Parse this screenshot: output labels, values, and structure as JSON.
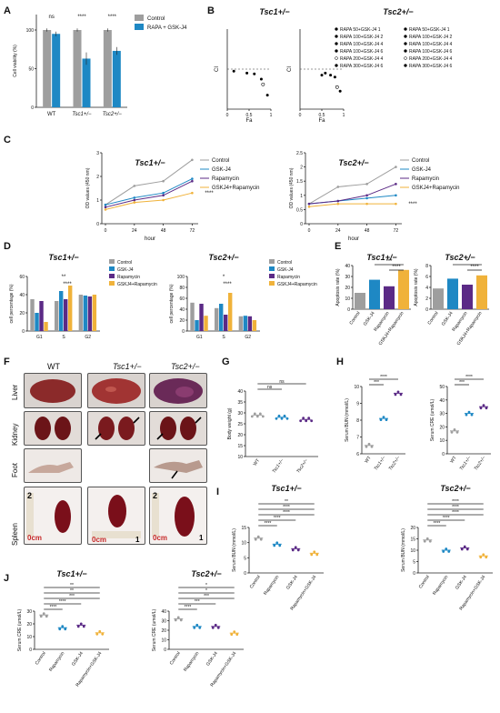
{
  "panels": {
    "A": "A",
    "B": "B",
    "C": "C",
    "D": "D",
    "E": "E",
    "F": "F",
    "G": "G",
    "H": "H",
    "I": "I",
    "J": "J"
  },
  "labels": {
    "tsc1": "Tsc1+/−",
    "tsc2": "Tsc2+/−",
    "wt": "WT",
    "liver": "Liver",
    "kidney": "Kidney",
    "foot": "Foot",
    "spleen": "Spleen",
    "hour": "hour",
    "fa": "Fa",
    "ci": "CI"
  },
  "colors": {
    "control": "#9e9e9e",
    "gsk": "#1e88c4",
    "rapa": "#5b2a86",
    "combo": "#f0b23a"
  },
  "chart_data": [
    {
      "panel": "A",
      "type": "bar",
      "categories": [
        "WT",
        "Tsc1+/−",
        "Tsc2+/−"
      ],
      "series": [
        {
          "name": "Control",
          "values": [
            100,
            100,
            100
          ]
        },
        {
          "name": "RAPA + GSK-J4",
          "values": [
            95,
            63,
            73
          ]
        }
      ],
      "errors": [
        [
          2,
          2,
          2
        ],
        [
          3,
          8,
          5
        ]
      ],
      "ylabel": "Cell viability (%)",
      "ylim": [
        0,
        120
      ],
      "yticks": [
        0,
        50,
        100
      ],
      "significance": [
        "ns",
        "****",
        "****"
      ]
    },
    {
      "panel": "B-Tsc1",
      "type": "scatter",
      "title": "Tsc1+/−",
      "xlabel": "Fa",
      "ylabel": "CI",
      "xlim": [
        0,
        1
      ],
      "ylim": [
        0,
        2
      ],
      "series": [
        {
          "name": "RAPA 50+GSK-J4 1",
          "x": 0.15,
          "y": 0.95
        },
        {
          "name": "RAPA 100+GSK-J4 2",
          "x": 0.45,
          "y": 0.9
        },
        {
          "name": "RAPA 100+GSK-J4 4",
          "x": 0.62,
          "y": 0.88
        },
        {
          "name": "RAPA 100+GSK-J4 6",
          "x": 0.78,
          "y": 0.75
        },
        {
          "name": "RAPA 200+GSK-J4 4",
          "x": 0.82,
          "y": 0.62
        },
        {
          "name": "RAPA 300+GSK-J4 6",
          "x": 0.92,
          "y": 0.35
        }
      ]
    },
    {
      "panel": "B-Tsc2",
      "type": "scatter",
      "title": "Tsc2+/−",
      "xlabel": "Fa",
      "ylabel": "CI",
      "xlim": [
        0,
        1
      ],
      "ylim": [
        0,
        2
      ],
      "series": [
        {
          "name": "RAPA 50+GSK-J4 1",
          "x": 0.5,
          "y": 0.85
        },
        {
          "name": "RAPA 100+GSK-J4 2",
          "x": 0.58,
          "y": 0.9
        },
        {
          "name": "RAPA 100+GSK-J4 4",
          "x": 0.7,
          "y": 0.85
        },
        {
          "name": "RAPA 100+GSK-J4 6",
          "x": 0.8,
          "y": 0.8
        },
        {
          "name": "RAPA 200+GSK-J4 4",
          "x": 0.85,
          "y": 0.55
        },
        {
          "name": "RAPA 300+GSK-J4 6",
          "x": 0.92,
          "y": 0.45
        }
      ]
    },
    {
      "panel": "C-Tsc1",
      "type": "line",
      "title": "Tsc1+/−",
      "x": [
        0,
        24,
        48,
        72
      ],
      "xlabel": "hour",
      "ylabel": "OD values (450 nm)",
      "ylim": [
        0,
        3
      ],
      "yticks": [
        0,
        1,
        2,
        3
      ],
      "series": [
        {
          "name": "Control",
          "values": [
            0.8,
            1.6,
            1.8,
            2.7
          ]
        },
        {
          "name": "GSK-J4",
          "values": [
            0.8,
            1.1,
            1.3,
            1.9
          ]
        },
        {
          "name": "Rapamycin",
          "values": [
            0.7,
            1.0,
            1.2,
            1.8
          ]
        },
        {
          "name": "GSKJ4+Rapamycin",
          "values": [
            0.6,
            0.9,
            1.0,
            1.3
          ]
        }
      ],
      "significance": "****"
    },
    {
      "panel": "C-Tsc2",
      "type": "line",
      "title": "Tsc2+/−",
      "x": [
        0,
        24,
        48,
        72
      ],
      "xlabel": "hour",
      "ylabel": "OD values (450 nm)",
      "ylim": [
        0,
        2.5
      ],
      "yticks": [
        0,
        0.5,
        1,
        1.5,
        2,
        2.5
      ],
      "series": [
        {
          "name": "Control",
          "values": [
            0.7,
            1.3,
            1.4,
            2.0
          ]
        },
        {
          "name": "GSK-J4",
          "values": [
            0.7,
            0.8,
            0.9,
            1.0
          ]
        },
        {
          "name": "Rapamycin",
          "values": [
            0.7,
            0.8,
            1.0,
            1.4
          ]
        },
        {
          "name": "GSKJ4+Rapamycin",
          "values": [
            0.6,
            0.7,
            0.7,
            0.7
          ]
        }
      ],
      "significance": "****"
    },
    {
      "panel": "D-Tsc1",
      "type": "bar",
      "title": "Tsc1+/−",
      "categories": [
        "G1",
        "S",
        "G2"
      ],
      "ylabel": "cell percentage (%)",
      "ylim": [
        0,
        60
      ],
      "yticks": [
        0,
        20,
        40,
        60
      ],
      "series": [
        {
          "name": "Control",
          "values": [
            35,
            33,
            40
          ]
        },
        {
          "name": "GSK-J4",
          "values": [
            20,
            44,
            39
          ]
        },
        {
          "name": "Rapamycin",
          "values": [
            33,
            35,
            38
          ]
        },
        {
          "name": "GSKJ4+Rapamycin",
          "values": [
            10,
            50,
            40
          ]
        }
      ],
      "significance": [
        "**",
        "****"
      ]
    },
    {
      "panel": "D-Tsc2",
      "type": "bar",
      "title": "Tsc2+/−",
      "categories": [
        "G1",
        "S",
        "G2"
      ],
      "ylabel": "cell percentage (%)",
      "ylim": [
        0,
        100
      ],
      "yticks": [
        0,
        20,
        40,
        60,
        80,
        100
      ],
      "series": [
        {
          "name": "Control",
          "values": [
            52,
            42,
            27
          ]
        },
        {
          "name": "GSK-J4",
          "values": [
            20,
            50,
            28
          ]
        },
        {
          "name": "Rapamycin",
          "values": [
            50,
            30,
            27
          ]
        },
        {
          "name": "GSKJ4+Rapamycin",
          "values": [
            28,
            70,
            20
          ]
        }
      ],
      "significance": [
        "*",
        "****"
      ]
    },
    {
      "panel": "E-Tsc1",
      "type": "bar",
      "title": "Tsc1+/−",
      "categories": [
        "Control",
        "GSK-J4",
        "Rapamycin",
        "GSKJ4+Rapamycin"
      ],
      "ylabel": "Apoptosis rate (%)",
      "ylim": [
        0,
        40
      ],
      "yticks": [
        0,
        10,
        20,
        30,
        40
      ],
      "values": [
        15,
        27,
        21,
        36
      ],
      "significance": [
        "***",
        "****"
      ]
    },
    {
      "panel": "E-Tsc2",
      "type": "bar",
      "title": "Tsc2+/−",
      "categories": [
        "Control",
        "GSK-J4",
        "Rapamycin",
        "GSKJ4+Rapamycin"
      ],
      "ylabel": "Apoptosis rate (%)",
      "ylim": [
        0,
        8
      ],
      "yticks": [
        0,
        2,
        4,
        6,
        8
      ],
      "values": [
        3.8,
        5.6,
        4.5,
        6.2
      ],
      "significance": [
        "*",
        "****"
      ]
    },
    {
      "panel": "G",
      "type": "scatter",
      "categories": [
        "WT",
        "Tsc1+/−",
        "Tsc2+/−"
      ],
      "ylabel": "Body weight (g)",
      "ylim": [
        10,
        40
      ],
      "yticks": [
        10,
        15,
        20,
        25,
        30,
        35,
        40
      ],
      "means": [
        29,
        28,
        27
      ],
      "significance": [
        "ns",
        "ns"
      ]
    },
    {
      "panel": "H-BUN",
      "type": "scatter",
      "categories": [
        "WT",
        "Tsc1+/−",
        "Tsc2+/−"
      ],
      "ylabel": "Serum BUN (mmol/L)",
      "ylim": [
        6,
        10
      ],
      "yticks": [
        6,
        7,
        8,
        9,
        10
      ],
      "means": [
        6.5,
        8.1,
        9.6
      ],
      "significance": [
        "***",
        "****"
      ]
    },
    {
      "panel": "H-CRE",
      "type": "scatter",
      "categories": [
        "WT",
        "Tsc1+/−",
        "Tsc2+/−"
      ],
      "ylabel": "Serum CRE (umol/L)",
      "ylim": [
        0,
        50
      ],
      "yticks": [
        0,
        10,
        20,
        30,
        40,
        50
      ],
      "means": [
        17,
        30,
        35
      ],
      "significance": [
        "***",
        "****"
      ]
    },
    {
      "panel": "I-Tsc1",
      "type": "scatter",
      "title": "Tsc1+/−",
      "categories": [
        "Control",
        "Rapamycin",
        "GSK-J4",
        "Rapamycin+GSK-J4"
      ],
      "ylabel": "Serum BUN (mmol/L)",
      "ylim": [
        0,
        15
      ],
      "yticks": [
        0,
        5,
        10,
        15
      ],
      "means": [
        11.5,
        9.5,
        8,
        6.5
      ],
      "significance": [
        "****",
        "****",
        "****",
        "****",
        "**"
      ]
    },
    {
      "panel": "I-Tsc2",
      "type": "scatter",
      "title": "Tsc2+/−",
      "categories": [
        "Control",
        "Rapamycin",
        "GSK-J4",
        "Rapamycin+GSK-J4"
      ],
      "ylabel": "Serum BUN (mmol/L)",
      "ylim": [
        0,
        20
      ],
      "yticks": [
        0,
        5,
        10,
        15,
        20
      ],
      "means": [
        14.5,
        10,
        11,
        7.5
      ],
      "significance": [
        "****",
        "****",
        "****",
        "****",
        "****"
      ]
    },
    {
      "panel": "J-Tsc1",
      "type": "scatter",
      "title": "Tsc1+/−",
      "categories": [
        "Control",
        "Rapamycin",
        "GSK-J4",
        "Rapamycin+GSK-J4"
      ],
      "ylabel": "Serum CRE (umol/L)",
      "ylim": [
        0,
        30
      ],
      "yticks": [
        0,
        10,
        20,
        30
      ],
      "means": [
        27,
        17,
        19,
        13
      ],
      "significance": [
        "****",
        "****",
        "***",
        "**",
        "**"
      ]
    },
    {
      "panel": "J-Tsc2",
      "type": "scatter",
      "title": "Tsc2+/−",
      "categories": [
        "Control",
        "Rapamycin",
        "GSK-J4",
        "Rapamycin+GSK-J4"
      ],
      "ylabel": "Serum CRE (umol/L)",
      "ylim": [
        0,
        40
      ],
      "yticks": [
        0,
        10,
        20,
        30,
        40
      ],
      "means": [
        32,
        24,
        24,
        17
      ],
      "significance": [
        "****",
        "***",
        "***",
        "*",
        "*"
      ]
    }
  ]
}
